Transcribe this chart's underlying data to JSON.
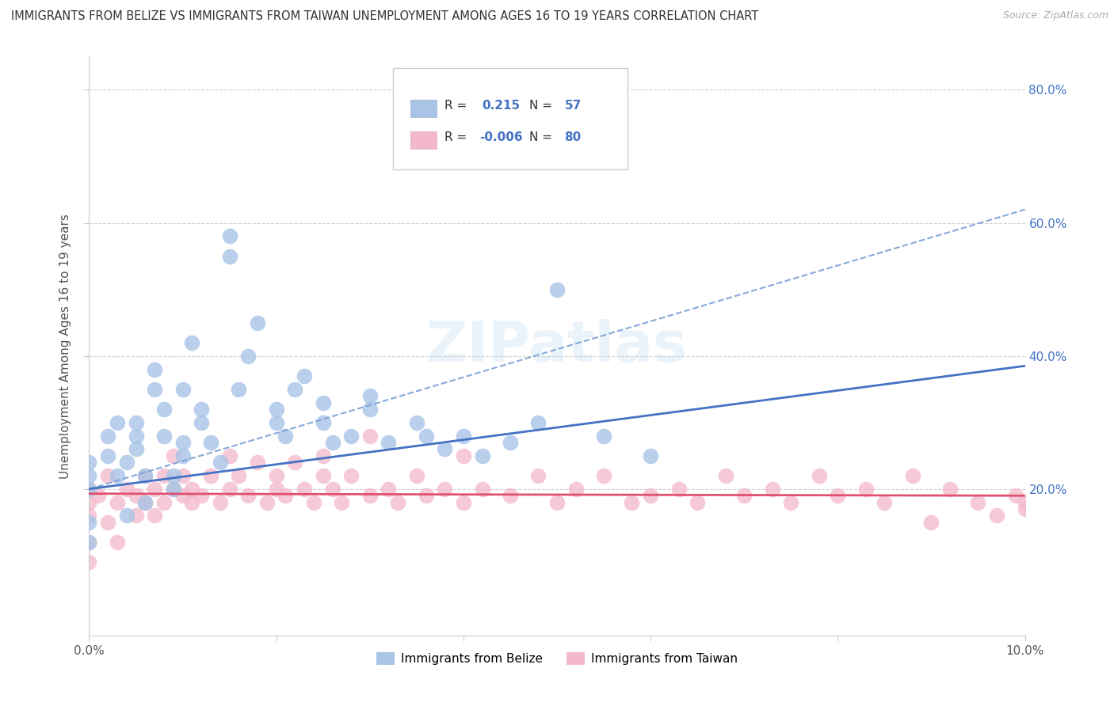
{
  "title": "IMMIGRANTS FROM BELIZE VS IMMIGRANTS FROM TAIWAN UNEMPLOYMENT AMONG AGES 16 TO 19 YEARS CORRELATION CHART",
  "source": "Source: ZipAtlas.com",
  "ylabel": "Unemployment Among Ages 16 to 19 years",
  "xlim": [
    0.0,
    0.1
  ],
  "ylim": [
    -0.02,
    0.85
  ],
  "y_ticks": [
    0.2,
    0.4,
    0.6,
    0.8
  ],
  "y_tick_labels": [
    "20.0%",
    "40.0%",
    "60.0%",
    "80.0%"
  ],
  "x_ticks": [
    0.0,
    0.02,
    0.04,
    0.06,
    0.08,
    0.1
  ],
  "x_tick_labels": [
    "0.0%",
    "",
    "",
    "",
    "",
    "10.0%"
  ],
  "belize_color": "#a8c4e6",
  "taiwan_color": "#f4b8cc",
  "belize_line_color": "#4472c4",
  "taiwan_line_color": "#e05070",
  "dash_color": "#7aa0d4",
  "R_belize": 0.215,
  "N_belize": 57,
  "R_taiwan": -0.006,
  "N_taiwan": 80,
  "watermark": "ZIPatlas",
  "background_color": "#ffffff",
  "grid_color": "#d0d0d0",
  "tick_color": "#4472c4",
  "belize_line_x0": 0.0,
  "belize_line_y0": 0.2,
  "belize_line_x1": 0.1,
  "belize_line_y1": 0.385,
  "dash_line_x0": 0.0,
  "dash_line_y0": 0.2,
  "dash_line_x1": 0.1,
  "dash_line_y1": 0.62,
  "taiwan_line_x0": 0.0,
  "taiwan_line_y0": 0.193,
  "taiwan_line_x1": 0.1,
  "taiwan_line_y1": 0.19,
  "belize_x": [
    0.0,
    0.0,
    0.0,
    0.0,
    0.0,
    0.002,
    0.002,
    0.003,
    0.003,
    0.004,
    0.004,
    0.005,
    0.005,
    0.005,
    0.006,
    0.006,
    0.007,
    0.007,
    0.008,
    0.008,
    0.009,
    0.009,
    0.01,
    0.01,
    0.01,
    0.011,
    0.012,
    0.012,
    0.013,
    0.014,
    0.015,
    0.015,
    0.016,
    0.017,
    0.018,
    0.02,
    0.02,
    0.021,
    0.022,
    0.023,
    0.025,
    0.025,
    0.026,
    0.028,
    0.03,
    0.03,
    0.032,
    0.035,
    0.036,
    0.038,
    0.04,
    0.042,
    0.045,
    0.048,
    0.05,
    0.055,
    0.06
  ],
  "belize_y": [
    0.2,
    0.22,
    0.24,
    0.15,
    0.12,
    0.25,
    0.28,
    0.3,
    0.22,
    0.24,
    0.16,
    0.26,
    0.28,
    0.3,
    0.22,
    0.18,
    0.35,
    0.38,
    0.32,
    0.28,
    0.22,
    0.2,
    0.25,
    0.27,
    0.35,
    0.42,
    0.3,
    0.32,
    0.27,
    0.24,
    0.55,
    0.58,
    0.35,
    0.4,
    0.45,
    0.3,
    0.32,
    0.28,
    0.35,
    0.37,
    0.3,
    0.33,
    0.27,
    0.28,
    0.32,
    0.34,
    0.27,
    0.3,
    0.28,
    0.26,
    0.28,
    0.25,
    0.27,
    0.3,
    0.5,
    0.28,
    0.25
  ],
  "taiwan_x": [
    0.0,
    0.0,
    0.0,
    0.0,
    0.0,
    0.001,
    0.002,
    0.002,
    0.003,
    0.003,
    0.004,
    0.005,
    0.005,
    0.006,
    0.006,
    0.007,
    0.007,
    0.008,
    0.008,
    0.009,
    0.009,
    0.01,
    0.01,
    0.011,
    0.011,
    0.012,
    0.013,
    0.014,
    0.015,
    0.015,
    0.016,
    0.017,
    0.018,
    0.019,
    0.02,
    0.02,
    0.021,
    0.022,
    0.023,
    0.024,
    0.025,
    0.025,
    0.026,
    0.027,
    0.028,
    0.03,
    0.03,
    0.032,
    0.033,
    0.035,
    0.036,
    0.038,
    0.04,
    0.04,
    0.042,
    0.045,
    0.048,
    0.05,
    0.052,
    0.055,
    0.058,
    0.06,
    0.063,
    0.065,
    0.068,
    0.07,
    0.073,
    0.075,
    0.078,
    0.08,
    0.083,
    0.085,
    0.088,
    0.09,
    0.092,
    0.095,
    0.097,
    0.099,
    0.1,
    0.1
  ],
  "taiwan_y": [
    0.18,
    0.2,
    0.16,
    0.12,
    0.09,
    0.19,
    0.22,
    0.15,
    0.18,
    0.12,
    0.2,
    0.19,
    0.16,
    0.22,
    0.18,
    0.2,
    0.16,
    0.22,
    0.18,
    0.25,
    0.2,
    0.19,
    0.22,
    0.18,
    0.2,
    0.19,
    0.22,
    0.18,
    0.2,
    0.25,
    0.22,
    0.19,
    0.24,
    0.18,
    0.2,
    0.22,
    0.19,
    0.24,
    0.2,
    0.18,
    0.22,
    0.25,
    0.2,
    0.18,
    0.22,
    0.19,
    0.28,
    0.2,
    0.18,
    0.22,
    0.19,
    0.2,
    0.25,
    0.18,
    0.2,
    0.19,
    0.22,
    0.18,
    0.2,
    0.22,
    0.18,
    0.19,
    0.2,
    0.18,
    0.22,
    0.19,
    0.2,
    0.18,
    0.22,
    0.19,
    0.2,
    0.18,
    0.22,
    0.15,
    0.2,
    0.18,
    0.16,
    0.19,
    0.18,
    0.17
  ]
}
